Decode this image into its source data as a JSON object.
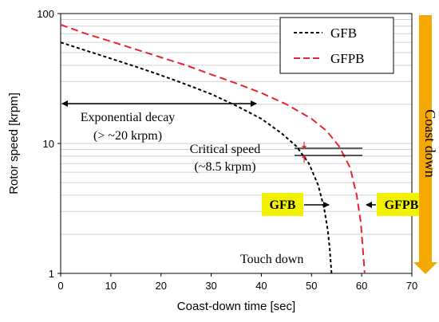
{
  "chart_data": {
    "type": "line",
    "xlabel": "Coast-down time [sec]",
    "ylabel": "Rotor speed [krpm]",
    "xlim": [
      0,
      70
    ],
    "ylim": [
      1,
      100
    ],
    "yscale": "log",
    "xticks": [
      "0",
      "10",
      "20",
      "30",
      "40",
      "50",
      "60",
      "70"
    ],
    "yticks": [
      "1",
      "10",
      "100"
    ],
    "grid": "horizontal",
    "legend_position": "top-right",
    "series": [
      {
        "name": "GFB",
        "color": "#000000",
        "style": "dashed",
        "x": [
          0,
          5,
          10,
          15,
          20,
          25,
          30,
          35,
          40,
          44,
          47,
          49.5,
          51.3,
          52.5,
          53.2,
          53.6,
          53.8,
          54
        ],
        "y": [
          60,
          52,
          45,
          39,
          33.5,
          28.5,
          24,
          19.5,
          15.5,
          12,
          9.5,
          7,
          4.8,
          3.2,
          2.2,
          1.6,
          1.25,
          1
        ]
      },
      {
        "name": "GFPB",
        "color": "#e8232a",
        "style": "dashed",
        "x": [
          0,
          5,
          10,
          15,
          20,
          25,
          30,
          35,
          40,
          45,
          50,
          53,
          55.5,
          57.7,
          59,
          59.8,
          60.2,
          60.6
        ],
        "y": [
          82,
          70,
          61,
          53,
          46,
          40,
          34,
          29,
          24.5,
          20,
          15.5,
          12.5,
          9.5,
          6.5,
          4,
          2.5,
          1.6,
          1
        ]
      }
    ]
  },
  "annotations": {
    "exponential_decay_line1": "Exponential decay",
    "exponential_decay_line2": "(> ~20 krpm)",
    "critical_speed_line1": "Critical speed",
    "critical_speed_line2": "(~8.5 krpm)",
    "gfb_tag": "GFB",
    "gfpb_tag": "GFPB",
    "touch_down": "Touch down",
    "coast_down": "Coast down"
  },
  "colors": {
    "tag_background": "#f2f200",
    "coast_arrow": "#f5a800",
    "critical_arrow": "#e8232a",
    "gridline": "#d0d0d0"
  }
}
